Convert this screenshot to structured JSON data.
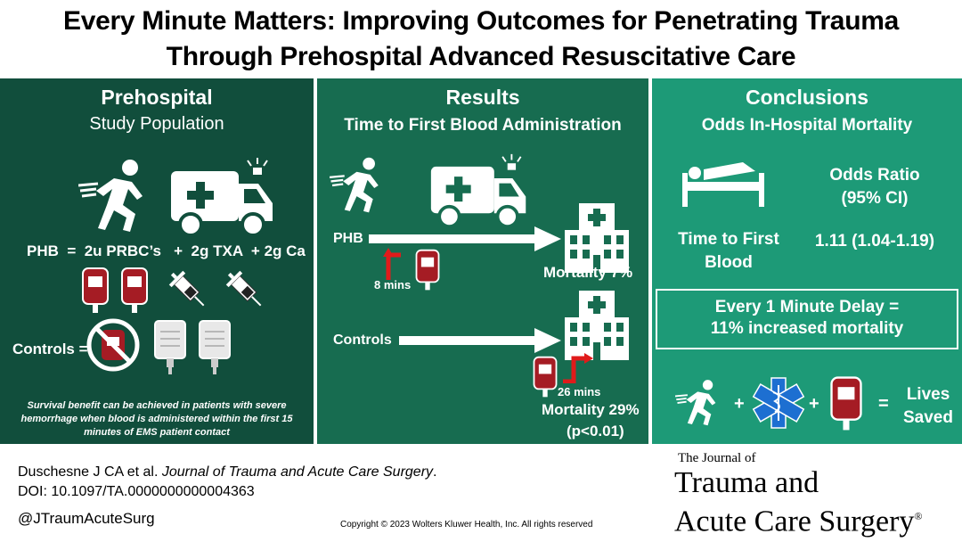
{
  "title": {
    "line1": "Every Minute Matters: Improving Outcomes for Penetrating Trauma",
    "line2": "Through Prehospital Advanced Resuscitative Care"
  },
  "panel1": {
    "heading": "Prehospital",
    "subheading": "Study Population",
    "phb_formula": "PHB  =  2u PRBC’s   +  2g TXA  + 2g Ca",
    "controls_label": "Controls =",
    "note": "Survival benefit can be achieved in patients with severe hemorrhage when blood is administered within the first 15 minutes of EMS patient contact"
  },
  "panel2": {
    "heading": "Results",
    "subheading": "Time to First Blood Administration",
    "phb_label": "PHB",
    "phb_time": "8 mins",
    "phb_mortality": "Mortality 7%",
    "controls_label": "Controls",
    "controls_time": "26 mins",
    "controls_mortality": "Mortality 29%",
    "p_value": "(p<0.01)"
  },
  "panel3": {
    "heading": "Conclusions",
    "subheading": "Odds In-Hospital Mortality",
    "or_heading_1": "Odds Ratio",
    "or_heading_2": "(95% CI)",
    "row_label_1": "Time to First",
    "row_label_2": "Blood",
    "row_value": "1.11 (1.04-1.19)",
    "delay_1": "Every 1 Minute Delay =",
    "delay_2": "11% increased mortality",
    "plus1": "+",
    "plus2": "+",
    "equals": "=",
    "result_1": "Lives",
    "result_2": "Saved"
  },
  "footer": {
    "authors": "Duschesne J CA et al.",
    "journal_italic": "Journal of Trauma and Acute Care Surgery",
    "period": ".",
    "doi": "DOI: 10.1097/TA.0000000000004363",
    "handle": "@JTraumAcuteSurg",
    "copyright": "Copyright © 2023  Wolters Kluwer Health, Inc. All rights reserved"
  },
  "journal_logo": {
    "line1": "The Journal of",
    "line2": "Trauma and",
    "line3": "Acute Care Surgery",
    "mark": "®"
  },
  "colors": {
    "panel1": "#114e3c",
    "panel2": "#176c50",
    "panel3": "#1d9a77",
    "blood": "#a51c24",
    "arrow_red": "#e01b1b",
    "medical_blue": "#1d6fd1"
  }
}
